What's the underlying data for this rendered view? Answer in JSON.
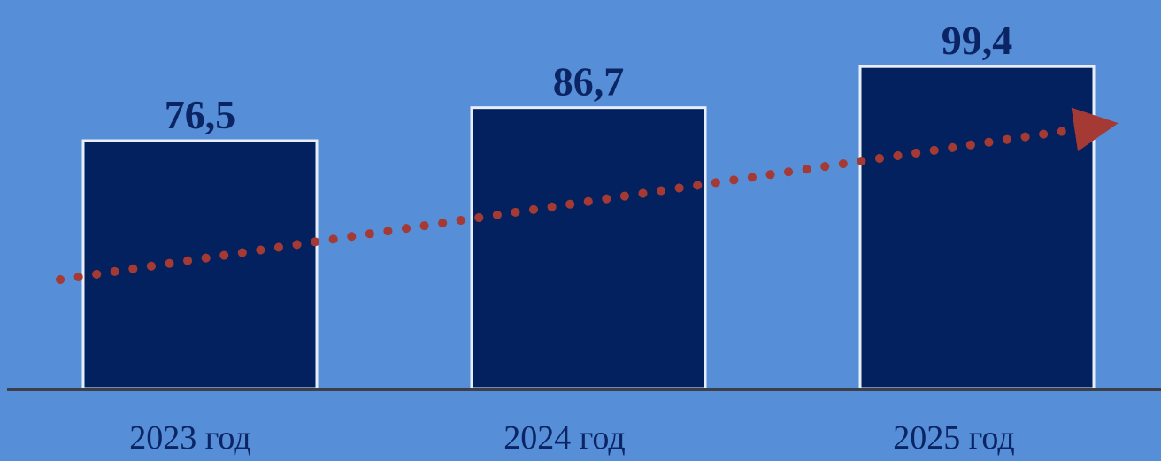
{
  "colors": {
    "background": "#568ed8",
    "bar_fill": "#04215f",
    "bar_border": "#e8eef8",
    "trend": "#a43a33",
    "axis": "#3d3f48",
    "text": "#0b2463"
  },
  "chart_data": {
    "type": "bar",
    "categories": [
      "2023 год",
      "2024 год",
      "2025 год"
    ],
    "values": [
      76.5,
      86.7,
      99.4
    ],
    "value_labels": [
      "76,5",
      "86,7",
      "99,4"
    ],
    "title": "",
    "xlabel": "",
    "ylabel": "",
    "ylim": [
      0,
      100
    ],
    "grid": false,
    "trend_line": {
      "style": "dotted",
      "arrow": true
    }
  }
}
